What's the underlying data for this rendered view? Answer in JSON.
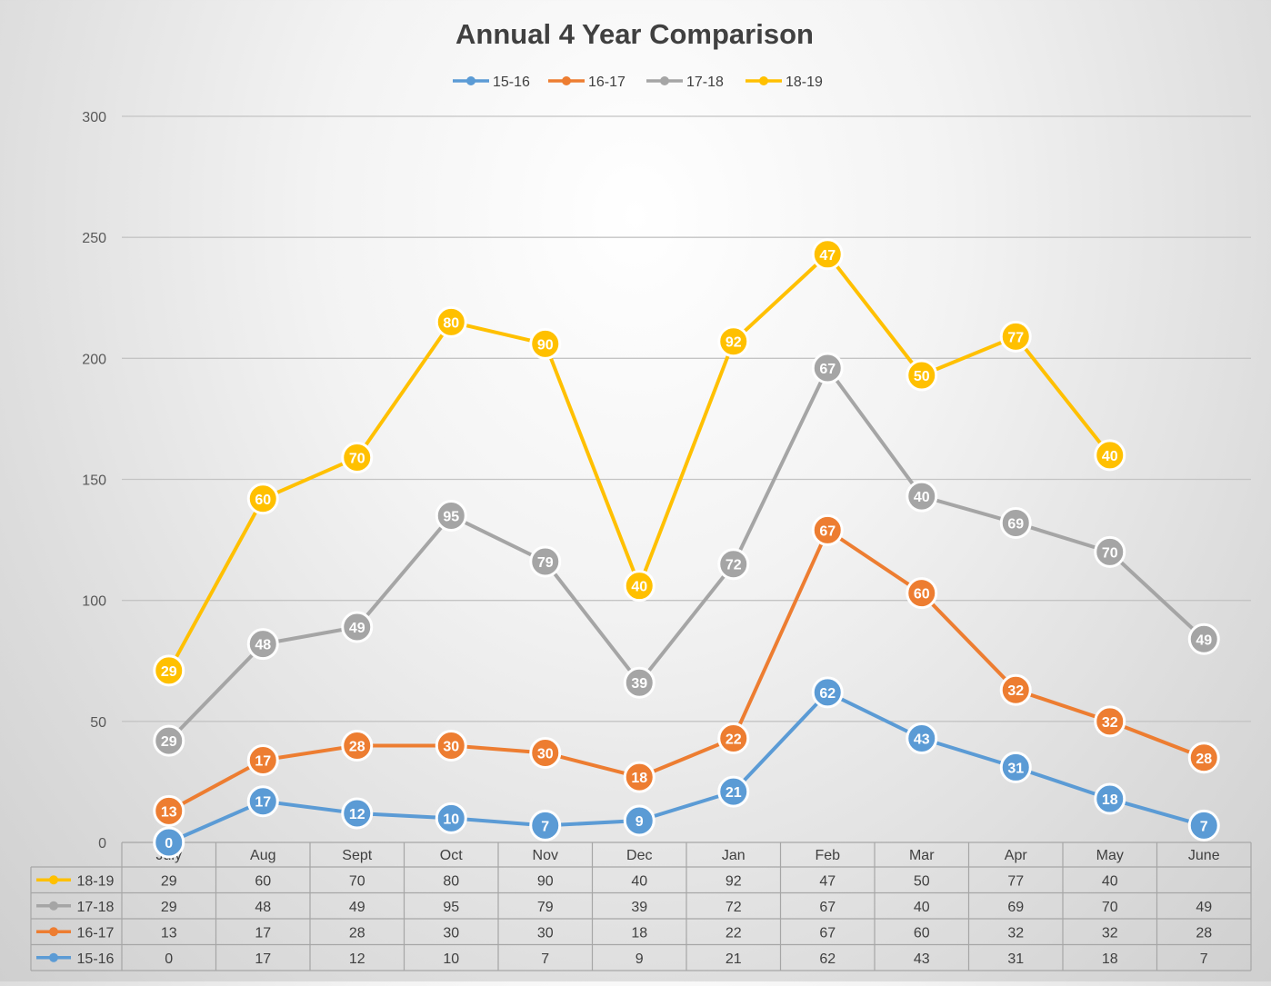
{
  "chart_data": {
    "type": "line",
    "stacked": true,
    "title": "Annual 4 Year Comparison",
    "categories": [
      "July",
      "Aug",
      "Sept",
      "Oct",
      "Nov",
      "Dec",
      "Jan",
      "Feb",
      "Mar",
      "Apr",
      "May",
      "June"
    ],
    "ylim": [
      0,
      300
    ],
    "y_ticks": [
      "0",
      "50",
      "100",
      "150",
      "200",
      "250",
      "300"
    ],
    "grid": true,
    "legend_position": "top",
    "data_table": true,
    "series": [
      {
        "name": "15-16",
        "color": "#5B9BD5",
        "values": [
          0,
          17,
          12,
          10,
          7,
          9,
          21,
          62,
          43,
          31,
          18,
          7
        ]
      },
      {
        "name": "16-17",
        "color": "#ED7D31",
        "values": [
          13,
          17,
          28,
          30,
          30,
          18,
          22,
          67,
          60,
          32,
          32,
          28
        ]
      },
      {
        "name": "17-18",
        "color": "#A5A5A5",
        "values": [
          29,
          48,
          49,
          95,
          79,
          39,
          72,
          67,
          40,
          69,
          70,
          49
        ]
      },
      {
        "name": "18-19",
        "color": "#FFC000",
        "values": [
          29,
          60,
          70,
          80,
          90,
          40,
          92,
          47,
          50,
          77,
          40,
          null
        ]
      }
    ]
  }
}
